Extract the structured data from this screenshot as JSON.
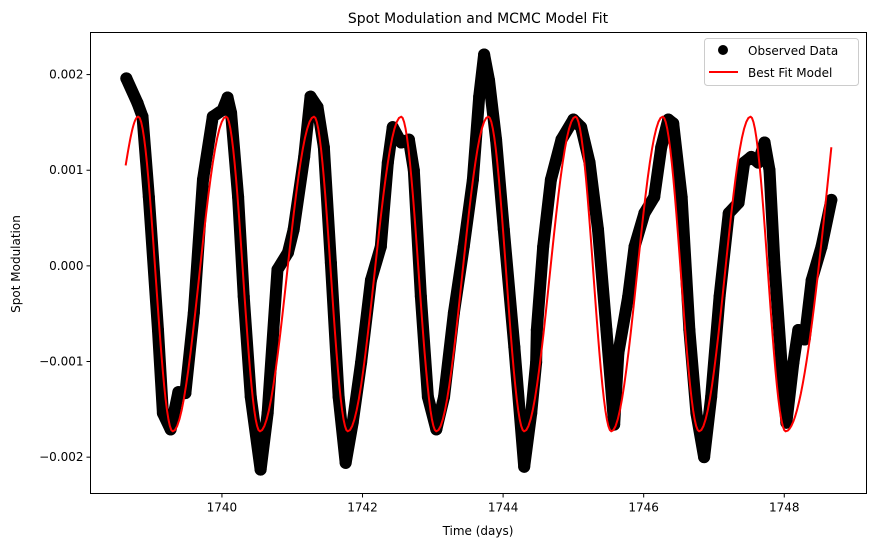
{
  "chart_data": {
    "type": "line",
    "title": "Spot Modulation and MCMC Model Fit",
    "xlabel": "Time (days)",
    "ylabel": "Spot Modulation",
    "xlim": [
      1738.13,
      1749.17
    ],
    "ylim": [
      -0.00238,
      0.00244
    ],
    "xticks": [
      1740,
      1742,
      1744,
      1746,
      1748
    ],
    "xtick_labels": [
      "1740",
      "1742",
      "1744",
      "1746",
      "1748"
    ],
    "yticks": [
      -0.002,
      -0.001,
      0.0,
      0.001,
      0.002
    ],
    "ytick_labels": [
      "−0.002",
      "−0.001",
      "0.000",
      "0.001",
      "0.002"
    ],
    "grid": false,
    "legend": {
      "placement": "top-right",
      "entries": [
        "Observed Data",
        "Best Fit Model"
      ]
    },
    "series": [
      {
        "name": "Observed Data",
        "style": "markers",
        "color": "#000000",
        "x": [
          1738.64,
          1738.8,
          1738.87,
          1738.96,
          1739.09,
          1739.16,
          1739.27,
          1739.38,
          1739.48,
          1739.6,
          1739.73,
          1739.87,
          1740.01,
          1740.08,
          1740.13,
          1740.23,
          1740.31,
          1740.41,
          1740.55,
          1740.65,
          1740.79,
          1740.94,
          1741.02,
          1741.17,
          1741.26,
          1741.36,
          1741.45,
          1741.55,
          1741.66,
          1741.76,
          1741.86,
          1741.98,
          1742.12,
          1742.26,
          1742.36,
          1742.43,
          1742.55,
          1742.66,
          1742.73,
          1742.83,
          1742.93,
          1743.05,
          1743.16,
          1743.3,
          1743.44,
          1743.57,
          1743.66,
          1743.73,
          1743.8,
          1743.9,
          1744.01,
          1744.16,
          1744.3,
          1744.4,
          1744.47,
          1744.48,
          1744.57,
          1744.68,
          1744.83,
          1745.0,
          1745.11,
          1745.23,
          1745.35,
          1745.47,
          1745.58,
          1745.64,
          1745.78,
          1745.87,
          1746.01,
          1746.15,
          1746.25,
          1746.35,
          1746.42,
          1746.54,
          1746.65,
          1746.75,
          1746.86,
          1746.96,
          1747.08,
          1747.21,
          1747.35,
          1747.43,
          1747.53,
          1747.63,
          1747.72,
          1747.79,
          1747.86,
          1747.96,
          1748.03,
          1748.13,
          1748.2,
          1748.29,
          1748.39,
          1748.53,
          1748.67
        ],
        "y": [
          0.00196,
          0.0017,
          0.00156,
          0.00072,
          -0.00067,
          -0.00154,
          -0.00171,
          -0.00132,
          -0.00133,
          -0.00049,
          0.0009,
          0.00156,
          0.00163,
          0.00176,
          0.0016,
          0.00072,
          -0.00032,
          -0.00137,
          -0.00213,
          -0.00154,
          -4e-05,
          0.00014,
          0.00038,
          0.00114,
          0.00177,
          0.00166,
          0.00124,
          3e-05,
          -0.00137,
          -0.00206,
          -0.00164,
          -0.00101,
          -0.00015,
          0.0002,
          0.00108,
          0.00145,
          0.00129,
          0.00132,
          0.001,
          -0.00032,
          -0.00137,
          -0.00171,
          -0.00137,
          -0.00049,
          0.0002,
          0.0009,
          0.00177,
          0.00221,
          0.00194,
          0.00132,
          0.00038,
          -0.00085,
          -0.0021,
          -0.00154,
          -0.00101,
          -0.00067,
          0.0002,
          0.0009,
          0.00132,
          0.00153,
          0.00145,
          0.00108,
          0.00038,
          -0.00067,
          -0.00166,
          -0.00091,
          -0.00032,
          0.0002,
          0.00055,
          0.00072,
          0.00124,
          0.00153,
          0.00149,
          0.00072,
          -0.00067,
          -0.00154,
          -0.002,
          -0.00137,
          -0.00032,
          0.00055,
          0.00066,
          0.00108,
          0.00114,
          0.00108,
          0.00129,
          0.001,
          3e-05,
          -0.00101,
          -0.00164,
          -0.00101,
          -0.00067,
          -0.00077,
          -0.00015,
          0.0002,
          0.00069
        ]
      },
      {
        "name": "Best Fit Model",
        "style": "line",
        "color": "#ff0000",
        "x": [
          1738.63,
          1738.81,
          1739.3,
          1740.06,
          1740.54,
          1741.31,
          1741.79,
          1742.55,
          1743.05,
          1743.79,
          1744.3,
          1745.03,
          1745.54,
          1746.27,
          1746.79,
          1747.52,
          1748.02,
          1748.67
        ],
        "y": [
          0.00105,
          0.00156,
          -0.00173,
          0.00156,
          -0.00173,
          0.00156,
          -0.00173,
          0.00156,
          -0.00173,
          0.00156,
          -0.00173,
          0.00156,
          -0.00173,
          0.00156,
          -0.00173,
          0.00156,
          -0.00173,
          0.00124
        ]
      }
    ]
  }
}
